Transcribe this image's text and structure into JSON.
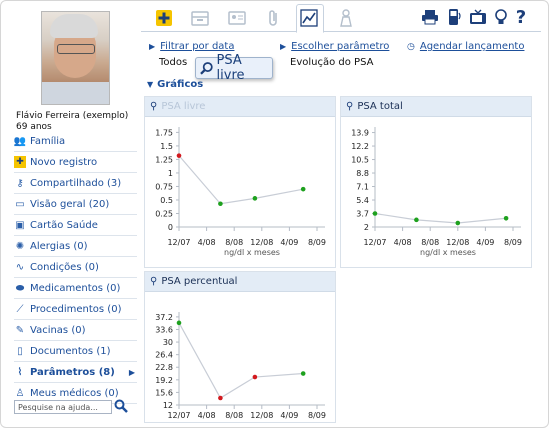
{
  "user": {
    "name": "Flávio Ferreira (exemplo)",
    "age": "69 anos"
  },
  "sidebar": {
    "items": [
      {
        "label": "Família",
        "icon": "family-icon",
        "glyph": "👥"
      },
      {
        "label": "Novo registro",
        "icon": "plus-icon",
        "glyph": "✚"
      },
      {
        "label": "Compartilhado (3)",
        "icon": "key-icon",
        "glyph": "⚷"
      },
      {
        "label": "Visão geral (20)",
        "icon": "folder-icon",
        "glyph": "▭"
      },
      {
        "label": "Cartão Saúde",
        "icon": "id-card-icon",
        "glyph": "▣"
      },
      {
        "label": "Alergias (0)",
        "icon": "allergy-icon",
        "glyph": "✺"
      },
      {
        "label": "Condições (0)",
        "icon": "stethoscope-icon",
        "glyph": "∿"
      },
      {
        "label": "Medicamentos (0)",
        "icon": "pill-icon",
        "glyph": "⬬"
      },
      {
        "label": "Procedimentos (0)",
        "icon": "scalpel-icon",
        "glyph": "⟋"
      },
      {
        "label": "Vacinas (0)",
        "icon": "syringe-icon",
        "glyph": "✎"
      },
      {
        "label": "Documentos (1)",
        "icon": "document-icon",
        "glyph": "▯"
      },
      {
        "label": "Parâmetros (8)",
        "icon": "chart-icon",
        "glyph": "⌇",
        "active": true
      },
      {
        "label": "Meus médicos (0)",
        "icon": "doctor-icon",
        "glyph": "♙"
      }
    ],
    "search_placeholder": "Pesquise na ajuda..."
  },
  "nav": {
    "filter_link": "Filtrar por data",
    "filter_value": "Todos",
    "choose_link": "Escolher parâmetro",
    "choose_value": "Evolução do PSA",
    "schedule_link": "Agendar lançamento",
    "section": "Gráficos"
  },
  "tooltip": {
    "label": "PSA livre"
  },
  "colors": {
    "accent": "#1d4f9a",
    "panel_head": "#e3ecf6",
    "dot_green": "#1ea11e",
    "dot_red": "#d2191e",
    "line": "#c8cdd6"
  },
  "chart_data": [
    {
      "type": "line",
      "title": "PSA livre",
      "xlabel": "ng/dl x meses",
      "ylabel": "",
      "x_ticks": [
        "12/07",
        "4/08",
        "8/08",
        "12/08",
        "4/09",
        "8/09"
      ],
      "y_ticks": [
        "0",
        "0.25",
        "0.5",
        "0.75",
        "1",
        "1.25",
        "1.5",
        "1.75"
      ],
      "ylim": [
        0,
        1.85
      ],
      "points": [
        {
          "x": "12/07",
          "y": 1.32,
          "color": "red"
        },
        {
          "x": "6/08",
          "y": 0.43,
          "color": "green"
        },
        {
          "x": "11/08",
          "y": 0.53,
          "color": "green"
        },
        {
          "x": "6/09",
          "y": 0.7,
          "color": "green"
        }
      ]
    },
    {
      "type": "line",
      "title": "PSA total",
      "xlabel": "ng/dl x meses",
      "ylabel": "",
      "x_ticks": [
        "12/07",
        "4/08",
        "8/08",
        "12/08",
        "4/09",
        "8/09"
      ],
      "y_ticks": [
        "2",
        "3.7",
        "5.4",
        "7.1",
        "8.8",
        "10.5",
        "12.2",
        "13.9"
      ],
      "ylim": [
        2,
        14.6
      ],
      "points": [
        {
          "x": "12/07",
          "y": 3.7,
          "color": "green"
        },
        {
          "x": "6/08",
          "y": 2.9,
          "color": "green"
        },
        {
          "x": "12/08",
          "y": 2.5,
          "color": "green"
        },
        {
          "x": "7/09",
          "y": 3.1,
          "color": "green"
        }
      ]
    },
    {
      "type": "line",
      "title": "PSA percentual",
      "xlabel": "",
      "ylabel": "",
      "x_ticks": [
        "12/07",
        "4/08",
        "8/08",
        "12/08",
        "4/09",
        "8/09"
      ],
      "y_ticks": [
        "12",
        "15.6",
        "19.2",
        "22.8",
        "26.4",
        "30",
        "33.6",
        "37.2"
      ],
      "ylim": [
        12,
        38.6
      ],
      "points": [
        {
          "x": "12/07",
          "y": 35.5,
          "color": "green"
        },
        {
          "x": "6/08",
          "y": 14.0,
          "color": "red"
        },
        {
          "x": "11/08",
          "y": 20.0,
          "color": "red"
        },
        {
          "x": "6/09",
          "y": 21.0,
          "color": "green"
        }
      ]
    }
  ]
}
